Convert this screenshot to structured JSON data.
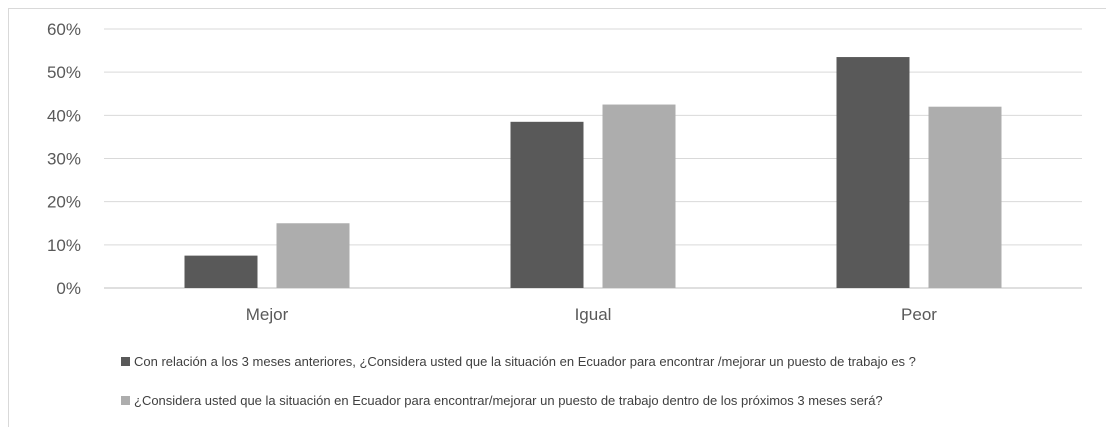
{
  "chart_data": {
    "type": "bar",
    "categories": [
      "Mejor",
      "Igual",
      "Peor"
    ],
    "series": [
      {
        "name": "Con relación a los 3 meses anteriores, ¿Considera usted que la situación en Ecuador para encontrar /mejorar un puesto de trabajo es ?",
        "values": [
          7.5,
          38.5,
          53.5
        ],
        "color": "#595959"
      },
      {
        "name": "¿Considera usted que la situación en Ecuador para encontrar/mejorar un puesto de trabajo dentro de los  próximos 3 meses será?",
        "values": [
          15,
          42.5,
          42
        ],
        "color": "#adadad"
      }
    ],
    "ylim": [
      0,
      60
    ],
    "yticks": [
      "0%",
      "10%",
      "20%",
      "30%",
      "40%",
      "50%",
      "60%"
    ],
    "grid": true,
    "legend_position": "bottom"
  }
}
